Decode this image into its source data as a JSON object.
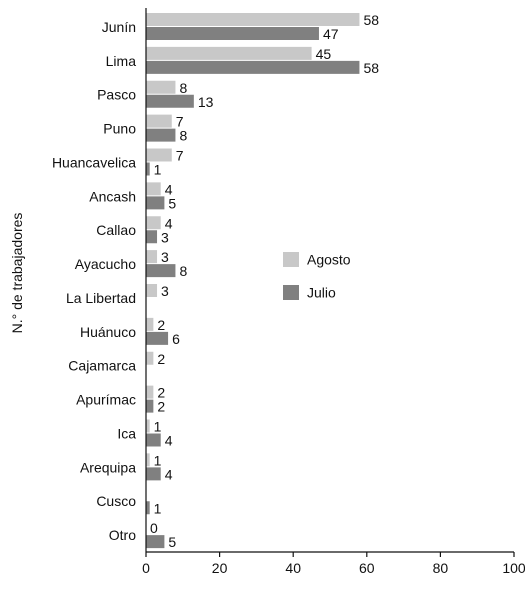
{
  "chart_data": {
    "type": "bar",
    "orientation": "horizontal",
    "title": "",
    "xlabel": "",
    "ylabel": "N.° de trabajadores",
    "categories": [
      "Junín",
      "Lima",
      "Pasco",
      "Puno",
      "Huancavelica",
      "Ancash",
      "Callao",
      "Ayacucho",
      "La Libertad",
      "Huánuco",
      "Cajamarca",
      "Apurímac",
      "Ica",
      "Arequipa",
      "Cusco",
      "Otro"
    ],
    "series": [
      {
        "name": "Agosto",
        "color": "#c8c8c8",
        "values": [
          58,
          45,
          8,
          7,
          7,
          4,
          4,
          3,
          3,
          2,
          2,
          2,
          1,
          1,
          null,
          0
        ]
      },
      {
        "name": "Julio",
        "color": "#808080",
        "values": [
          47,
          58,
          13,
          8,
          1,
          5,
          3,
          8,
          null,
          6,
          null,
          2,
          4,
          4,
          1,
          5
        ]
      }
    ],
    "xlim": [
      0,
      100
    ],
    "xticks": [
      "0",
      "20",
      "40",
      "60",
      "80",
      "100"
    ],
    "grid": false,
    "legend_position": "right-center"
  }
}
